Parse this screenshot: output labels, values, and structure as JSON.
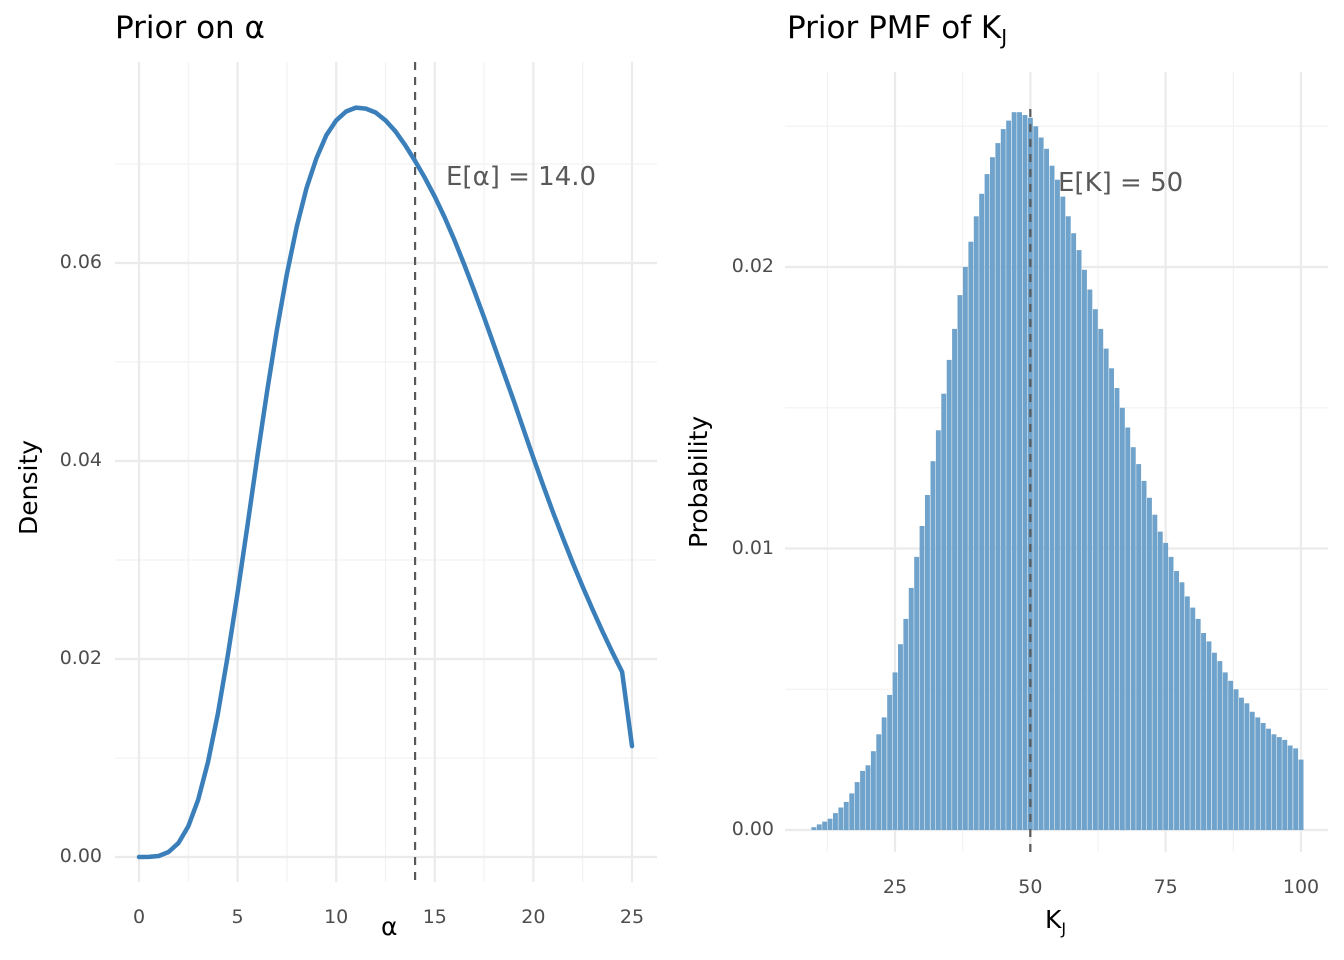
{
  "left": {
    "title": "Prior on α",
    "xlabel": "α",
    "ylabel": "Density",
    "annotation": "E[α] = 14.0",
    "xticks": [
      "0",
      "5",
      "10",
      "15",
      "20",
      "25"
    ],
    "yticks": [
      "0.00",
      "0.02",
      "0.04",
      "0.06"
    ]
  },
  "right": {
    "title": "Prior PMF of K",
    "title_sub": "J",
    "xlabel": "K",
    "xlabel_sub": "J",
    "ylabel": "Probability",
    "annotation": "E[K] = 50",
    "xticks": [
      "25",
      "50",
      "75",
      "100"
    ],
    "yticks": [
      "0.00",
      "0.01",
      "0.02"
    ]
  },
  "colors": {
    "line": "#3a7fba",
    "bar": "#6fa3cb",
    "vline": "#595959",
    "grid_major": "#ebebeb",
    "grid_minor": "#f2f2f2"
  },
  "chart_data": [
    {
      "type": "line",
      "title": "Prior on α",
      "xlabel": "α",
      "ylabel": "Density",
      "xlim": [
        0,
        25
      ],
      "ylim": [
        0,
        0.0757
      ],
      "grid": true,
      "vline": {
        "x": 14.0,
        "label": "E[α] = 14.0",
        "style": "dashed"
      },
      "x": [
        0,
        0.5,
        1,
        1.5,
        2,
        2.5,
        3,
        3.5,
        4,
        4.5,
        5,
        5.5,
        6,
        6.5,
        7,
        7.5,
        8,
        8.5,
        9,
        9.5,
        10,
        10.5,
        11,
        11.5,
        12,
        12.5,
        13,
        13.5,
        14,
        14.5,
        15,
        15.5,
        16,
        16.5,
        17,
        17.5,
        18,
        18.5,
        19,
        19.5,
        20,
        20.5,
        21,
        21.5,
        22,
        22.5,
        23,
        23.5,
        24,
        24.5,
        25
      ],
      "y": [
        0,
        1e-05,
        0.0001,
        0.0005,
        0.0014,
        0.0031,
        0.0058,
        0.0096,
        0.0145,
        0.0203,
        0.0267,
        0.0335,
        0.0404,
        0.0471,
        0.0533,
        0.0589,
        0.0637,
        0.0676,
        0.0706,
        0.0729,
        0.0744,
        0.0753,
        0.0757,
        0.0756,
        0.0752,
        0.0744,
        0.0733,
        0.0719,
        0.0703,
        0.0686,
        0.0667,
        0.0646,
        0.0623,
        0.0598,
        0.0572,
        0.0545,
        0.0517,
        0.0489,
        0.0461,
        0.0432,
        0.0403,
        0.0375,
        0.0348,
        0.0322,
        0.0297,
        0.0273,
        0.025,
        0.0228,
        0.0207,
        0.0187,
        0.0112
      ]
    },
    {
      "type": "bar",
      "title": "Prior PMF of K_J",
      "xlabel": "K_J",
      "ylabel": "Probability",
      "xlim": [
        7,
        103
      ],
      "ylim": [
        0,
        0.0255
      ],
      "grid": true,
      "vline": {
        "x": 50,
        "label": "E[K] = 50",
        "style": "dashed"
      },
      "categories": [
        10,
        11,
        12,
        13,
        14,
        15,
        16,
        17,
        18,
        19,
        20,
        21,
        22,
        23,
        24,
        25,
        26,
        27,
        28,
        29,
        30,
        31,
        32,
        33,
        34,
        35,
        36,
        37,
        38,
        39,
        40,
        41,
        42,
        43,
        44,
        45,
        46,
        47,
        48,
        49,
        50,
        51,
        52,
        53,
        54,
        55,
        56,
        57,
        58,
        59,
        60,
        61,
        62,
        63,
        64,
        65,
        66,
        67,
        68,
        69,
        70,
        71,
        72,
        73,
        74,
        75,
        76,
        77,
        78,
        79,
        80,
        81,
        82,
        83,
        84,
        85,
        86,
        87,
        88,
        89,
        90,
        91,
        92,
        93,
        94,
        95,
        96,
        97,
        98,
        99,
        100
      ],
      "values": [
        0.0001,
        0.0002,
        0.0003,
        0.0004,
        0.0006,
        0.0008,
        0.001,
        0.0013,
        0.0017,
        0.0021,
        0.0023,
        0.0028,
        0.0034,
        0.004,
        0.0048,
        0.0056,
        0.0066,
        0.0075,
        0.0086,
        0.0097,
        0.0108,
        0.0119,
        0.0131,
        0.0142,
        0.0155,
        0.0167,
        0.0178,
        0.019,
        0.02,
        0.0209,
        0.0218,
        0.0226,
        0.0233,
        0.0239,
        0.0244,
        0.0249,
        0.0252,
        0.0255,
        0.0255,
        0.0254,
        0.0253,
        0.025,
        0.0246,
        0.0242,
        0.0236,
        0.0231,
        0.0225,
        0.0218,
        0.0212,
        0.0206,
        0.0199,
        0.0192,
        0.0185,
        0.0178,
        0.0171,
        0.0164,
        0.0157,
        0.015,
        0.0143,
        0.0136,
        0.013,
        0.0124,
        0.0118,
        0.0112,
        0.0106,
        0.0102,
        0.0097,
        0.0092,
        0.0088,
        0.0083,
        0.0079,
        0.0075,
        0.007,
        0.0067,
        0.0063,
        0.006,
        0.0056,
        0.0053,
        0.005,
        0.0047,
        0.0045,
        0.0042,
        0.004,
        0.0038,
        0.0036,
        0.0034,
        0.0033,
        0.0032,
        0.003,
        0.0029,
        0.0025
      ]
    }
  ]
}
